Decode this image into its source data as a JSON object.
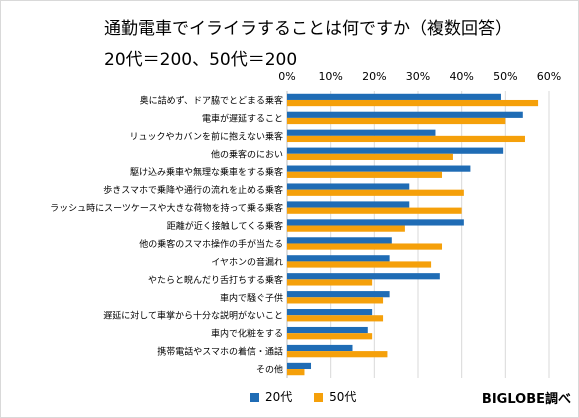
{
  "title": "通勤電車でイライラすることは何ですか（複数回答）",
  "subtitle": "20代＝200、50代＝200",
  "source": "BIGLOBE調べ",
  "colors": {
    "series_20": "#1f6cb5",
    "series_50": "#f5a00a",
    "grid": "#d9d9d9"
  },
  "chart_data": {
    "type": "bar",
    "orientation": "horizontal",
    "categories": [
      "奥に詰めず、ドア脇でとどまる乗客",
      "電車が遅延すること",
      "リュックやカバンを前に抱えない乗客",
      "他の乗客のにおい",
      "駆け込み乗車や無理な乗車をする乗客",
      "歩きスマホで乗降や通行の流れを止める乗客",
      "ラッシュ時にスーツケースや大きな荷物を持って乗る乗客",
      "距離が近く接触してくる乗客",
      "他の乗客のスマホ操作の手が当たる",
      "イヤホンの音漏れ",
      "やたらと睨んだり舌打ちする乗客",
      "車内で騒ぐ子供",
      "遅延に対して車掌から十分な説明がないこと",
      "車内で化粧をする",
      "携帯電話やスマホの着信・通話",
      "その他"
    ],
    "series": [
      {
        "name": "20代",
        "values": [
          49,
          54,
          34,
          49.5,
          42,
          28,
          28,
          40.5,
          24,
          23.5,
          35,
          23.5,
          19.5,
          18.5,
          15,
          5.5
        ]
      },
      {
        "name": "50代",
        "values": [
          57.5,
          50,
          54.5,
          38,
          35.5,
          40.5,
          40,
          27,
          35.5,
          33,
          19.5,
          22,
          22,
          19.5,
          23,
          4
        ]
      }
    ],
    "xlim": [
      0,
      60
    ],
    "xticks": [
      0,
      10,
      20,
      30,
      40,
      50,
      60
    ],
    "tick_suffix": "%",
    "xlabel": "",
    "ylabel": "",
    "grid": true,
    "legend": "bottom"
  }
}
